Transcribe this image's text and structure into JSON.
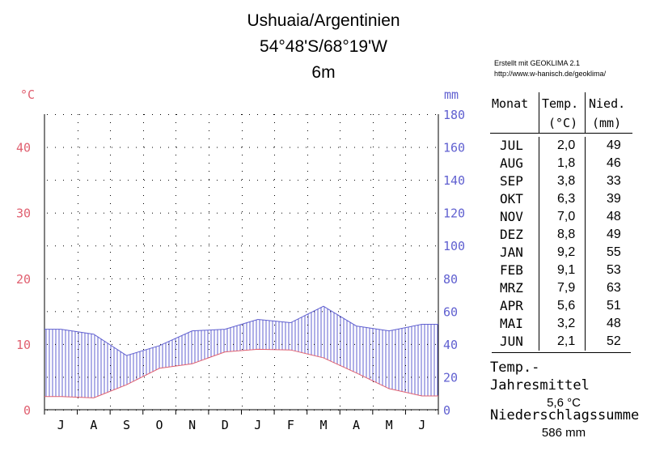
{
  "header": {
    "station": "Ushuaia/Argentinien",
    "coordinates": "54°48'S/68°19'W",
    "elevation": "6m"
  },
  "credit": {
    "line1": "Erstellt mit GEOKLIMA 2.1",
    "line2": "http://www.w-hanisch.de/geoklima/"
  },
  "table": {
    "col_month": "Monat",
    "col_temp": "Temp.",
    "col_temp_unit": "(°C)",
    "col_precip": "Nied.",
    "col_precip_unit": "(mm)",
    "rows": [
      {
        "month": "JUL",
        "temp": "2,0",
        "precip": "49"
      },
      {
        "month": "AUG",
        "temp": "1,8",
        "precip": "46"
      },
      {
        "month": "SEP",
        "temp": "3,8",
        "precip": "33"
      },
      {
        "month": "OKT",
        "temp": "6,3",
        "precip": "39"
      },
      {
        "month": "NOV",
        "temp": "7,0",
        "precip": "48"
      },
      {
        "month": "DEZ",
        "temp": "8,8",
        "precip": "49"
      },
      {
        "month": "JAN",
        "temp": "9,2",
        "precip": "55"
      },
      {
        "month": "FEB",
        "temp": "9,1",
        "precip": "53"
      },
      {
        "month": "MRZ",
        "temp": "7,9",
        "precip": "63"
      },
      {
        "month": "APR",
        "temp": "5,6",
        "precip": "51"
      },
      {
        "month": "MAI",
        "temp": "3,2",
        "precip": "48"
      },
      {
        "month": "JUN",
        "temp": "2,1",
        "precip": "52"
      }
    ]
  },
  "summary": {
    "temp_label": "Temp.-Jahresmittel",
    "temp_value": "5,6 °C",
    "precip_label": "Niederschlagssumme",
    "precip_value": "586 mm"
  },
  "colors": {
    "temperature": "#e06070",
    "precipitation": "#6060d0",
    "grid": "#000000"
  },
  "chart_data": {
    "type": "line",
    "title": "Ushuaia/Argentinien",
    "categories": [
      "J",
      "A",
      "S",
      "O",
      "N",
      "D",
      "J",
      "F",
      "M",
      "A",
      "M",
      "J"
    ],
    "series": [
      {
        "name": "Temp.",
        "axis": "left",
        "values": [
          2.0,
          1.8,
          3.8,
          6.3,
          7.0,
          8.8,
          9.2,
          9.1,
          7.9,
          5.6,
          3.2,
          2.1
        ]
      },
      {
        "name": "Nied.",
        "axis": "right",
        "values": [
          49,
          46,
          33,
          39,
          48,
          49,
          55,
          53,
          63,
          51,
          48,
          52
        ]
      }
    ],
    "left_axis": {
      "label": "°C",
      "ticks": [
        0,
        10,
        20,
        30,
        40
      ],
      "ylim": [
        0,
        45
      ]
    },
    "right_axis": {
      "label": "mm",
      "ticks": [
        0,
        20,
        40,
        60,
        80,
        100,
        120,
        140,
        160,
        180
      ],
      "ylim": [
        0,
        180
      ]
    },
    "grid": true
  }
}
